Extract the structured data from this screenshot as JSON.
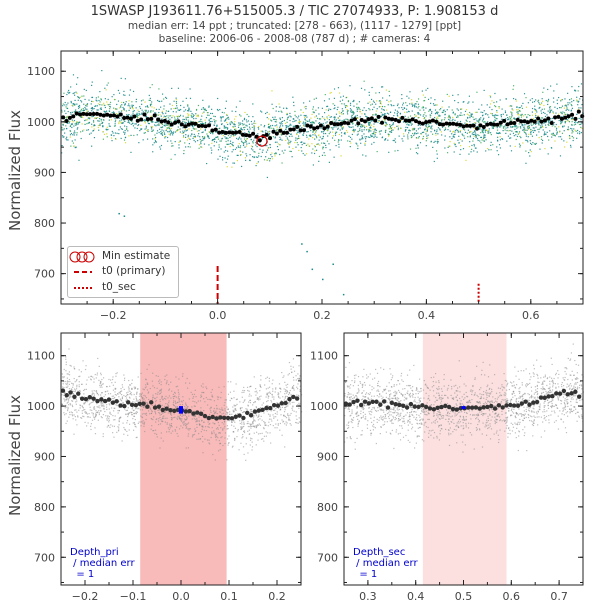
{
  "header": {
    "title": "1SWASP J193611.76+515005.3 / TIC 27074933, P: 1.908153 d",
    "line2": "median err: 14 ppt ; truncated: [278 - 663), (1117 - 1279] [ppt]",
    "line3": "baseline: 2006-06 - 2008-08 (787 d)  ;  # cameras: 4"
  },
  "colors": {
    "raw_teal": "#1b8a8a",
    "raw_yellow": "#d8d820",
    "raw_green": "#3fae5a",
    "binned": "#000000",
    "t0_line": "#cc0000",
    "shade_primary": "#f7a3a3",
    "shade_secondary": "#fbd3d3",
    "depth_marker": "#0000ff",
    "min_marker": "#cc0000"
  },
  "legend": {
    "min_estimate": "Min estimate",
    "t0_primary": "t0 (primary)",
    "t0_sec": "t0_sec"
  },
  "notes": {
    "pri": "Depth_pri\n / median err\n  = 1",
    "sec": "Depth_sec\n / median err\n  = 1"
  },
  "chart_data": [
    {
      "type": "scatter",
      "panel": "full-phase",
      "ylabel": "Normalized Flux",
      "xlim": [
        -0.3,
        0.7
      ],
      "ylim": [
        640,
        1140
      ],
      "xticks": [
        -0.2,
        0.0,
        0.2,
        0.4,
        0.6
      ],
      "yticks": [
        700,
        800,
        900,
        1000,
        1100
      ],
      "t0_primary": 0.0,
      "t0_sec": 0.5,
      "min_estimate": {
        "x": 0.085,
        "y": 962
      },
      "binned_series": {
        "name": "binned",
        "x": [
          -0.3,
          -0.25,
          -0.2,
          -0.15,
          -0.1,
          -0.05,
          0.0,
          0.05,
          0.08,
          0.1,
          0.15,
          0.2,
          0.25,
          0.3,
          0.35,
          0.4,
          0.45,
          0.5,
          0.55,
          0.6,
          0.65,
          0.7
        ],
        "y": [
          1005,
          1015,
          1013,
          1008,
          1002,
          995,
          982,
          975,
          968,
          975,
          985,
          990,
          1000,
          1005,
          1005,
          1000,
          995,
          990,
          998,
          1000,
          1005,
          1015
        ]
      },
      "outliers": {
        "x": [
          -0.19,
          -0.18,
          0.17,
          0.18,
          0.2,
          0.22,
          0.24,
          0.16
        ],
        "y": [
          820,
          815,
          745,
          710,
          690,
          720,
          660,
          760
        ]
      },
      "legend_position": "lower-left",
      "grid": false
    },
    {
      "type": "scatter",
      "panel": "primary-zoom",
      "ylabel": "Normalized Flux",
      "xlim": [
        -0.25,
        0.25
      ],
      "ylim": [
        645,
        1145
      ],
      "xticks": [
        -0.2,
        -0.1,
        0.0,
        0.1,
        0.2
      ],
      "yticks": [
        700,
        800,
        900,
        1000,
        1100
      ],
      "shaded_region": [
        -0.085,
        0.095
      ],
      "depth_marker_x": 0.0,
      "depth_marker_y": [
        985,
        1000
      ],
      "binned_series": {
        "name": "binned",
        "x": [
          -0.25,
          -0.2,
          -0.15,
          -0.1,
          -0.05,
          0.0,
          0.05,
          0.1,
          0.15,
          0.2,
          0.25
        ],
        "y": [
          1030,
          1015,
          1008,
          1002,
          998,
          992,
          980,
          975,
          985,
          1000,
          1025
        ]
      }
    },
    {
      "type": "scatter",
      "panel": "secondary-zoom",
      "xlim": [
        0.25,
        0.75
      ],
      "ylim": [
        645,
        1145
      ],
      "xticks": [
        0.3,
        0.4,
        0.5,
        0.6,
        0.7
      ],
      "yticks": [
        700,
        800,
        900,
        1000,
        1100
      ],
      "shaded_region": [
        0.415,
        0.59
      ],
      "depth_marker_x": 0.5,
      "depth_marker_y": [
        994,
        1000
      ],
      "binned_series": {
        "name": "binned",
        "x": [
          0.25,
          0.3,
          0.35,
          0.4,
          0.45,
          0.5,
          0.55,
          0.6,
          0.65,
          0.7
        ],
        "y": [
          1005,
          1008,
          1003,
          1000,
          997,
          995,
          998,
          1000,
          1008,
          1025
        ]
      }
    }
  ]
}
